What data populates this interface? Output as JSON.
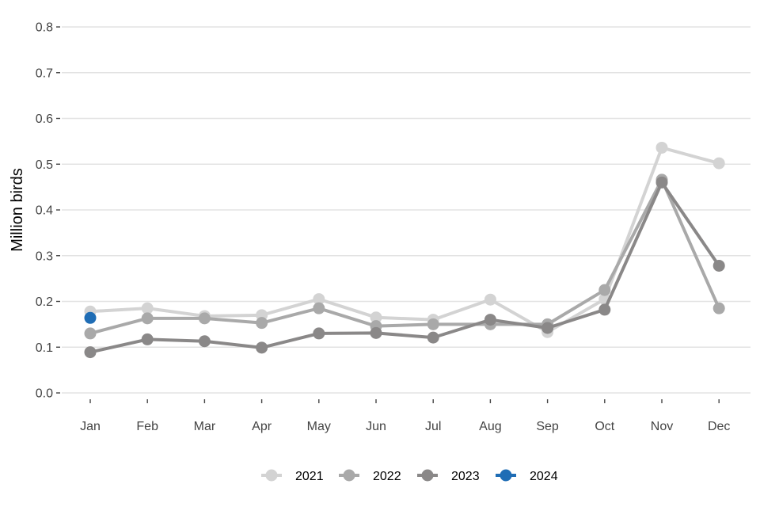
{
  "chart_data": {
    "type": "line",
    "title": "",
    "xlabel": "",
    "ylabel": "Million birds",
    "categories": [
      "Jan",
      "Feb",
      "Mar",
      "Apr",
      "May",
      "Jun",
      "Jul",
      "Aug",
      "Sep",
      "Oct",
      "Nov",
      "Dec"
    ],
    "ylim": [
      0.0,
      0.8
    ],
    "yticks": [
      "0.0",
      "0.1",
      "0.2",
      "0.3",
      "0.4",
      "0.5",
      "0.6",
      "0.7",
      "0.8"
    ],
    "grid": true,
    "legend_position": "bottom",
    "series": [
      {
        "name": "2021",
        "color": "#d3d3d3",
        "values": [
          0.178,
          0.185,
          0.168,
          0.17,
          0.205,
          0.165,
          0.16,
          0.204,
          0.133,
          0.205,
          0.536,
          0.502
        ]
      },
      {
        "name": "2022",
        "color": "#a9a9a9",
        "values": [
          0.13,
          0.163,
          0.163,
          0.153,
          0.185,
          0.146,
          0.15,
          0.15,
          0.15,
          0.225,
          0.466,
          0.185
        ]
      },
      {
        "name": "2023",
        "color": "#8a8888",
        "values": [
          0.089,
          0.117,
          0.113,
          0.099,
          0.13,
          0.131,
          0.121,
          0.16,
          0.142,
          0.182,
          0.46,
          0.278
        ]
      },
      {
        "name": "2024",
        "color": "#1f6db5",
        "values": [
          0.164,
          null,
          null,
          null,
          null,
          null,
          null,
          null,
          null,
          null,
          null,
          null
        ]
      }
    ]
  }
}
